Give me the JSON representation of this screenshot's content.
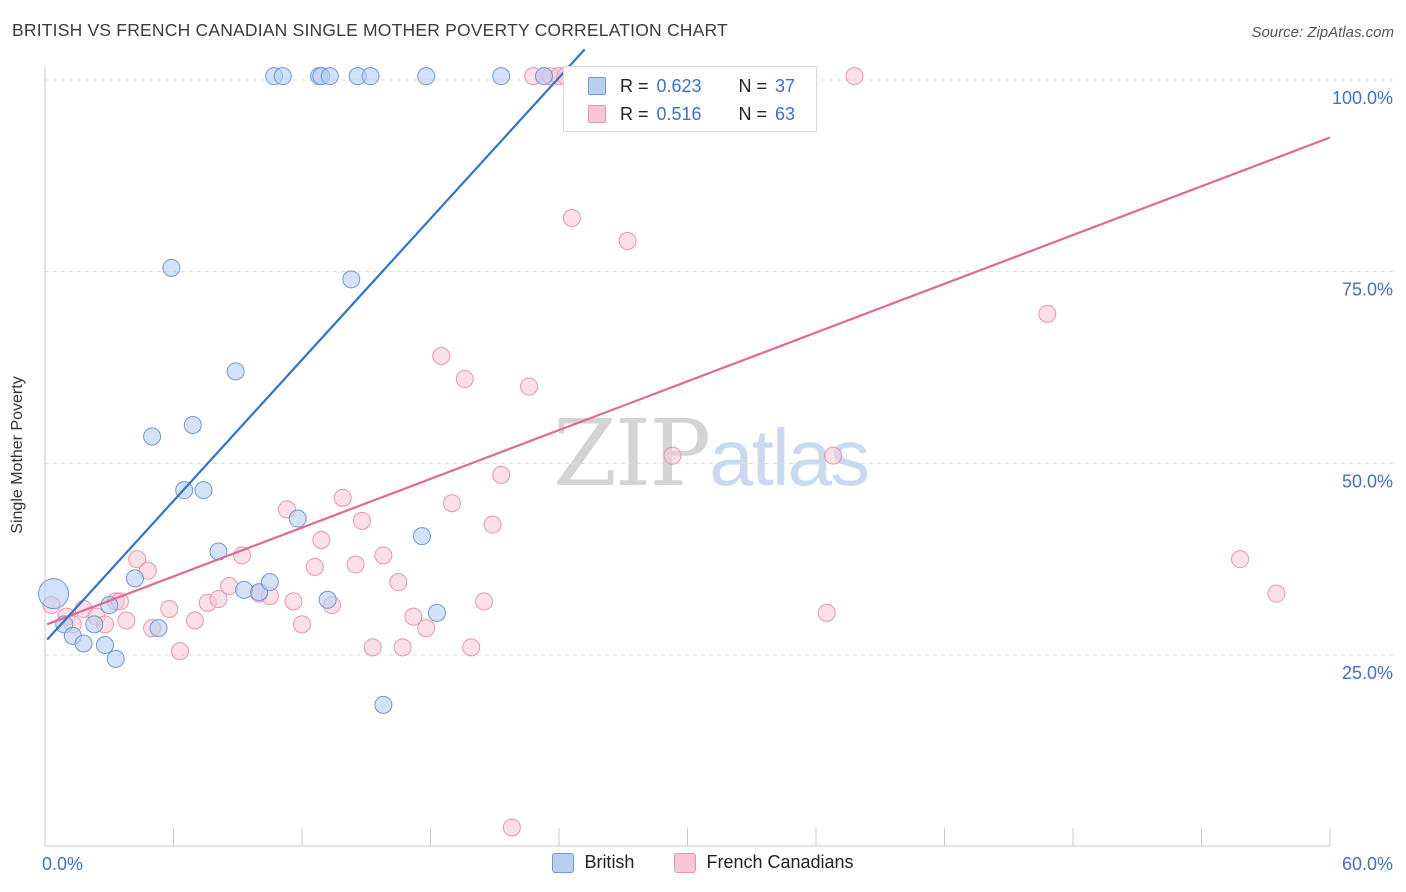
{
  "title": "BRITISH VS FRENCH CANADIAN SINGLE MOTHER POVERTY CORRELATION CHART",
  "source": "Source: ZipAtlas.com",
  "watermark": {
    "part1": "ZIP",
    "part2": "atlas"
  },
  "legend": {
    "rows": [
      {
        "r_label": "R =",
        "r_value": "0.623",
        "n_label": "N =",
        "n_value": "37",
        "color": "#a9c4ef"
      },
      {
        "r_label": "R =",
        "r_value": "0.516",
        "n_label": "N =",
        "n_value": "63",
        "color": "#f5b7c8"
      }
    ]
  },
  "bottom_legend": [
    "British",
    "French Canadians"
  ],
  "colors": {
    "british_fill": "#b8cff2",
    "british_stroke": "#6a9ad8",
    "british_line": "#2f73d0",
    "french_fill": "#f8c6d4",
    "french_stroke": "#e896ae",
    "french_line": "#e06a92",
    "tick_label": "#3c72c8",
    "grid": "#dcdcdc"
  },
  "chart_data": {
    "type": "scatter",
    "title": "BRITISH VS FRENCH CANADIAN SINGLE MOTHER POVERTY CORRELATION CHART",
    "xlabel": "",
    "ylabel": "Single Mother Poverty",
    "xlim": [
      0,
      60
    ],
    "ylim": [
      0,
      105
    ],
    "x_tick_labels": [
      "0.0%",
      "60.0%"
    ],
    "y_tick_labels": [
      "25.0%",
      "50.0%",
      "75.0%",
      "100.0%"
    ],
    "y_ticks": [
      25,
      50,
      75,
      100
    ],
    "grid": true,
    "series": [
      {
        "name": "British",
        "r": 0.623,
        "n": 37,
        "trend": [
          [
            0.1,
            27.0
          ],
          [
            25.2,
            104.0
          ]
        ],
        "points": [
          [
            0.4,
            33.0
          ],
          [
            0.9,
            29.0
          ],
          [
            1.3,
            27.5
          ],
          [
            1.8,
            26.5
          ],
          [
            2.3,
            29.0
          ],
          [
            2.8,
            26.3
          ],
          [
            3.3,
            24.5
          ],
          [
            3.0,
            31.5
          ],
          [
            4.2,
            35.0
          ],
          [
            5.0,
            53.5
          ],
          [
            5.9,
            75.5
          ],
          [
            5.3,
            28.5
          ],
          [
            6.5,
            46.5
          ],
          [
            7.4,
            46.5
          ],
          [
            6.9,
            55.0
          ],
          [
            8.1,
            38.5
          ],
          [
            8.9,
            62.0
          ],
          [
            9.3,
            33.5
          ],
          [
            10.0,
            33.2
          ],
          [
            10.5,
            34.5
          ],
          [
            11.8,
            42.8
          ],
          [
            13.2,
            32.2
          ],
          [
            14.3,
            74.0
          ],
          [
            15.8,
            18.5
          ],
          [
            17.6,
            40.5
          ],
          [
            18.3,
            30.5
          ],
          [
            10.7,
            100.5
          ],
          [
            11.1,
            100.5
          ],
          [
            12.8,
            100.5
          ],
          [
            12.9,
            100.5
          ],
          [
            13.3,
            100.5
          ],
          [
            14.6,
            100.5
          ],
          [
            15.2,
            100.5
          ],
          [
            17.8,
            100.5
          ],
          [
            21.3,
            100.5
          ],
          [
            23.3,
            100.5
          ],
          [
            25.7,
            100.5
          ]
        ]
      },
      {
        "name": "French Canadians",
        "r": 0.516,
        "n": 63,
        "trend": [
          [
            0.1,
            29.0
          ],
          [
            60.0,
            92.5
          ]
        ],
        "points": [
          [
            0.3,
            31.5
          ],
          [
            1.0,
            30.0
          ],
          [
            1.3,
            29.0
          ],
          [
            1.8,
            31.0
          ],
          [
            2.4,
            30.0
          ],
          [
            2.8,
            29.0
          ],
          [
            3.3,
            32.0
          ],
          [
            3.5,
            32.0
          ],
          [
            3.8,
            29.5
          ],
          [
            4.3,
            37.5
          ],
          [
            4.8,
            36.0
          ],
          [
            5.0,
            28.5
          ],
          [
            5.8,
            31.0
          ],
          [
            6.3,
            25.5
          ],
          [
            7.0,
            29.5
          ],
          [
            7.6,
            31.8
          ],
          [
            8.1,
            32.3
          ],
          [
            8.6,
            34.0
          ],
          [
            9.2,
            38.0
          ],
          [
            10.0,
            33.0
          ],
          [
            10.5,
            32.7
          ],
          [
            11.3,
            44.0
          ],
          [
            11.6,
            32.0
          ],
          [
            12.0,
            29.0
          ],
          [
            12.6,
            36.5
          ],
          [
            12.9,
            40.0
          ],
          [
            13.4,
            31.5
          ],
          [
            13.9,
            45.5
          ],
          [
            14.5,
            36.8
          ],
          [
            14.8,
            42.5
          ],
          [
            15.3,
            26.0
          ],
          [
            15.8,
            38.0
          ],
          [
            16.5,
            34.5
          ],
          [
            16.7,
            26.0
          ],
          [
            17.2,
            30.0
          ],
          [
            17.8,
            28.5
          ],
          [
            18.5,
            64.0
          ],
          [
            19.0,
            44.8
          ],
          [
            19.6,
            61.0
          ],
          [
            19.9,
            26.0
          ],
          [
            20.5,
            32.0
          ],
          [
            20.9,
            42.0
          ],
          [
            21.3,
            48.5
          ],
          [
            21.8,
            2.5
          ],
          [
            22.6,
            60.0
          ],
          [
            24.6,
            82.0
          ],
          [
            27.2,
            79.0
          ],
          [
            29.3,
            51.0
          ],
          [
            36.5,
            30.5
          ],
          [
            36.8,
            51.0
          ],
          [
            46.8,
            69.5
          ],
          [
            55.8,
            37.5
          ],
          [
            57.5,
            33.0
          ],
          [
            22.8,
            100.5
          ],
          [
            23.3,
            100.5
          ],
          [
            23.6,
            100.5
          ],
          [
            24.0,
            100.5
          ],
          [
            24.3,
            100.5
          ],
          [
            24.7,
            100.5
          ],
          [
            32.0,
            100.5
          ],
          [
            33.5,
            100.5
          ],
          [
            35.0,
            100.5
          ],
          [
            37.8,
            100.5
          ]
        ]
      }
    ]
  }
}
